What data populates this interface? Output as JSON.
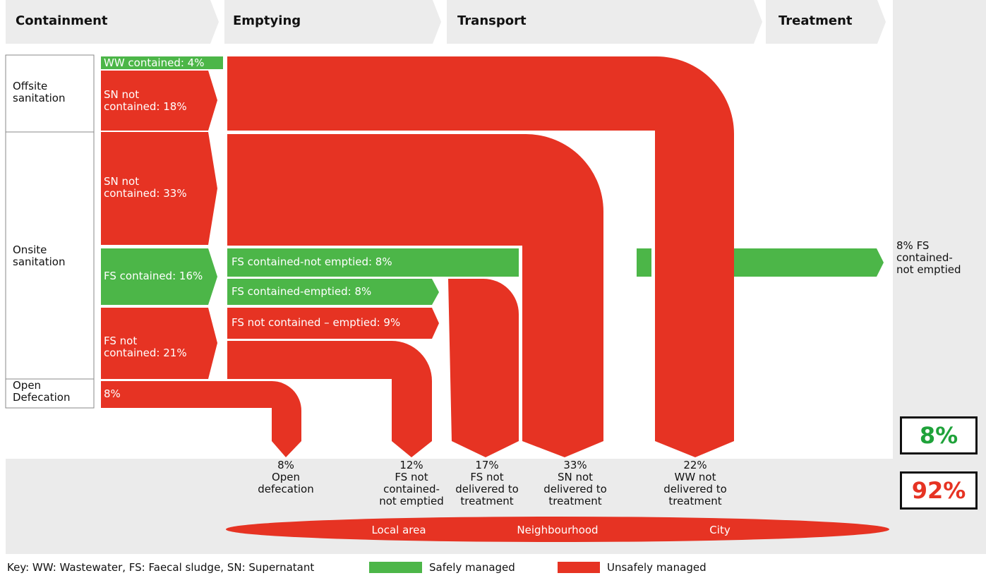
{
  "stages": [
    "Containment",
    "Emptying",
    "Transport",
    "Treatment"
  ],
  "systems": [
    {
      "lines": [
        "Offsite",
        "sanitation"
      ]
    },
    {
      "lines": [
        "Onsite",
        "sanitation"
      ]
    },
    {
      "lines": [
        "Open",
        "Defecation"
      ]
    }
  ],
  "flows": [
    {
      "lines": [
        "WW contained: 4%"
      ]
    },
    {
      "lines": [
        "SN not",
        "contained: 18%"
      ]
    },
    {
      "lines": [
        "SN not",
        "contained: 33%"
      ]
    },
    {
      "lines": [
        "FS contained: 16%"
      ]
    },
    {
      "lines": [
        "FS contained-not emptied: 8%"
      ]
    },
    {
      "lines": [
        "FS contained-emptied: 8%"
      ]
    },
    {
      "lines": [
        "FS not",
        "contained: 21%"
      ]
    },
    {
      "lines": [
        "FS not contained – emptied: 9%"
      ]
    },
    {
      "lines": [
        "8%"
      ]
    }
  ],
  "outcomes": [
    {
      "lines": [
        "8%",
        "Open",
        "defecation"
      ]
    },
    {
      "lines": [
        "12%",
        "FS not",
        "contained-",
        "not emptied"
      ]
    },
    {
      "lines": [
        "17%",
        "FS not",
        "delivered to",
        "treatment"
      ]
    },
    {
      "lines": [
        "33%",
        "SN not",
        "delivered to",
        "treatment"
      ]
    },
    {
      "lines": [
        "22%",
        "WW not",
        "delivered to",
        "treatment"
      ]
    }
  ],
  "treated": {
    "lines": [
      "8% FS",
      "contained-",
      "not emptied"
    ]
  },
  "safe_total": "8%",
  "unsafe_total": "92%",
  "scale": [
    "Local area",
    "Neighbourhood",
    "City"
  ],
  "key": {
    "text": "Key: WW: Wastewater, FS: Faecal sludge, SN: Supernatant",
    "safe": "Safely managed",
    "unsafe": "Unsafely managed"
  }
}
